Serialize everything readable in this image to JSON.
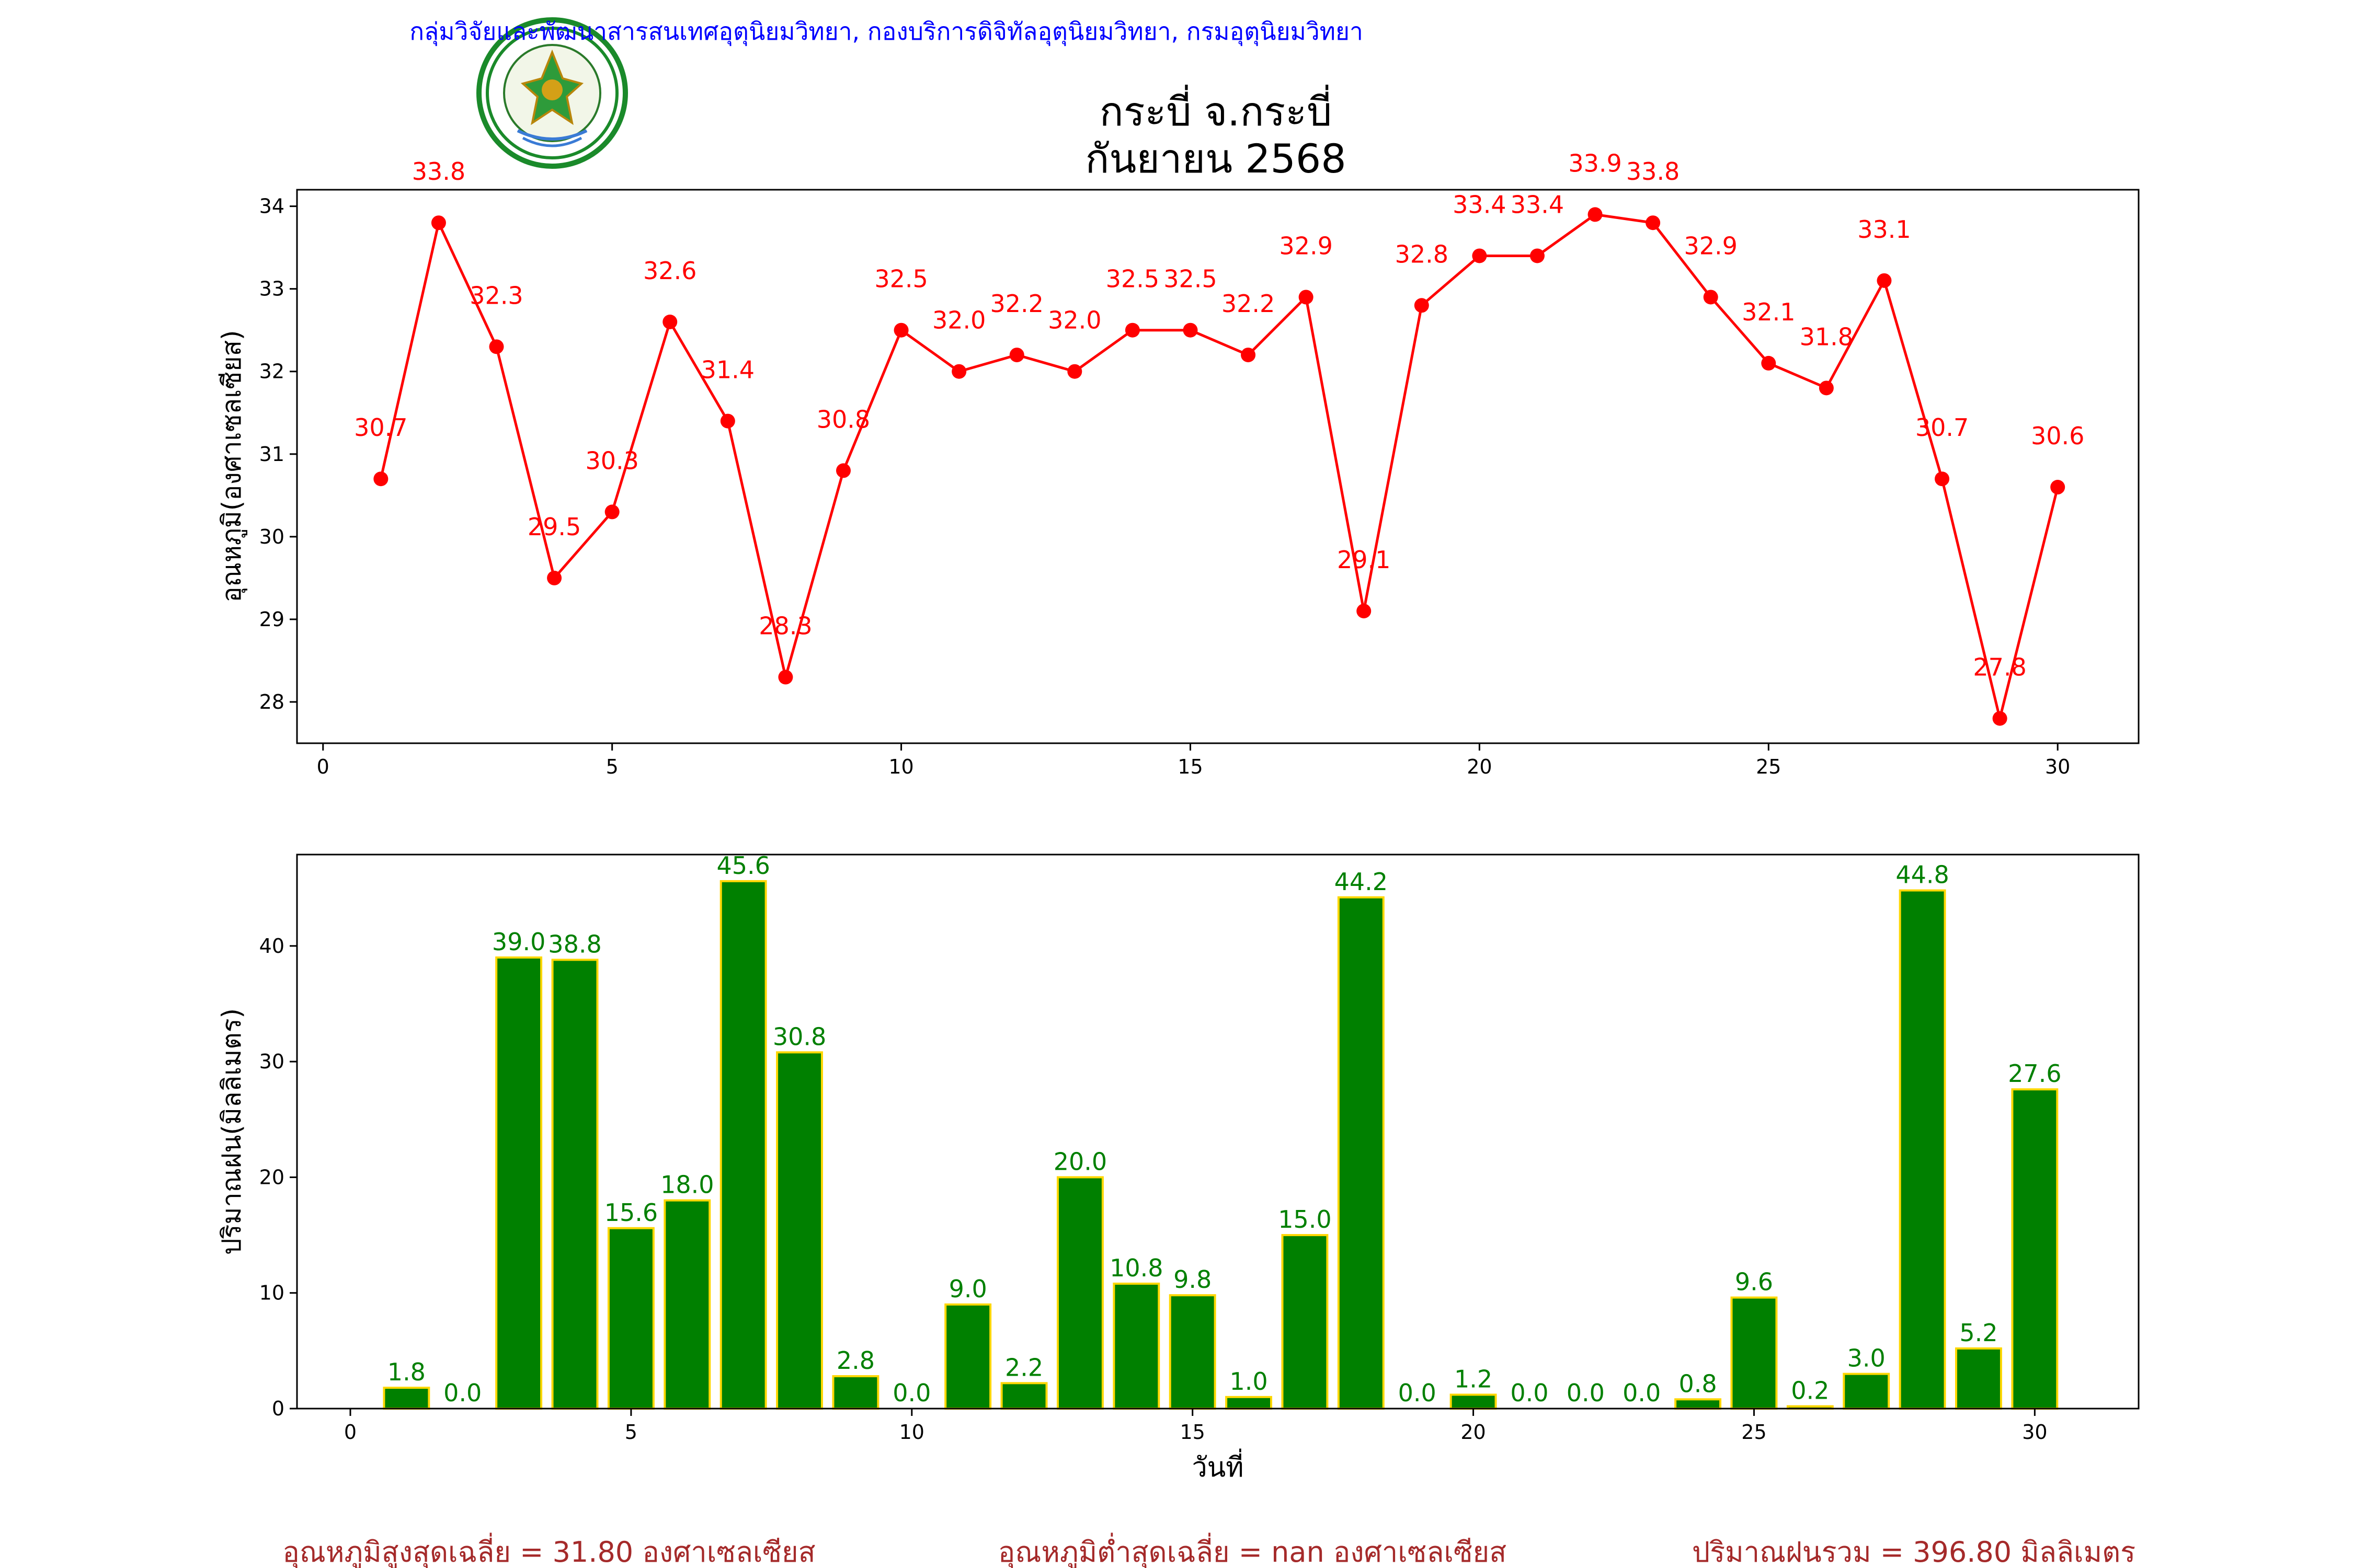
{
  "header": {
    "credit": "กลุ่มวิจัยและพัฒนาสารสนเทศอุตุนิยมวิทยา, กองบริการดิจิทัลอุตุนิยมวิทยา, กรมอุตุนิยมวิทยา",
    "title_line1": "กระบี่ จ.กระบี่",
    "title_line2": "กันยายน 2568",
    "logo_text_top": "กรมอุตุนิยมวิทยา",
    "logo_text_bottom": "METEOROLOGICAL DEPARTMENT"
  },
  "colors": {
    "temp_line": "#ff0000",
    "rain_bar": "#008000",
    "rain_bar_edge": "#ffd700",
    "footer": "#a52a2a",
    "credit": "#0000ff"
  },
  "chart_data": [
    {
      "type": "line",
      "ylabel": "อุณหภูมิ(องศาเซลเซียส)",
      "xlabel": "",
      "x": [
        1,
        2,
        3,
        4,
        5,
        6,
        7,
        8,
        9,
        10,
        11,
        12,
        13,
        14,
        15,
        16,
        17,
        18,
        19,
        20,
        21,
        22,
        23,
        24,
        25,
        26,
        27,
        28,
        29,
        30
      ],
      "values": [
        30.7,
        33.8,
        32.3,
        29.5,
        30.3,
        32.6,
        31.4,
        28.3,
        30.8,
        32.5,
        32.0,
        32.2,
        32.0,
        32.5,
        32.5,
        32.2,
        32.9,
        29.1,
        32.8,
        33.4,
        33.4,
        33.9,
        33.8,
        32.9,
        32.1,
        31.8,
        33.1,
        30.7,
        27.8,
        30.6
      ],
      "labels": [
        "30.7",
        "33.8",
        "32.3",
        "29.5",
        "30.3",
        "32.6",
        "31.4",
        "28.3",
        "30.8",
        "32.5",
        "32.0",
        "32.2",
        "32.0",
        "32.5",
        "32.5",
        "32.2",
        "32.9",
        "29.1",
        "32.8",
        "33.4",
        "33.4",
        "33.9",
        "33.8",
        "32.9",
        "32.1",
        "31.8",
        "33.1",
        "30.7",
        "27.8",
        "30.6"
      ],
      "xlim": [
        -0.45,
        31.4
      ],
      "ylim": [
        27.5,
        34.2
      ],
      "xticks": [
        0,
        5,
        10,
        15,
        20,
        25,
        30
      ],
      "yticks": [
        28,
        29,
        30,
        31,
        32,
        33,
        34
      ],
      "grid": false
    },
    {
      "type": "bar",
      "ylabel": "ปริมาณฝน(มิลลิเมตร)",
      "xlabel": "วันที่",
      "x": [
        1,
        2,
        3,
        4,
        5,
        6,
        7,
        8,
        9,
        10,
        11,
        12,
        13,
        14,
        15,
        16,
        17,
        18,
        19,
        20,
        21,
        22,
        23,
        24,
        25,
        26,
        27,
        28,
        29,
        30
      ],
      "values": [
        1.8,
        0.0,
        39.0,
        38.8,
        15.6,
        18.0,
        45.6,
        30.8,
        2.8,
        0.0,
        9.0,
        2.2,
        20.0,
        10.8,
        9.8,
        1.0,
        15.0,
        44.2,
        0.0,
        1.2,
        0.0,
        0.0,
        0.0,
        0.8,
        9.6,
        0.2,
        3.0,
        44.8,
        5.2,
        27.6
      ],
      "labels": [
        "1.8",
        "0.0",
        "39.0",
        "38.8",
        "15.6",
        "18.0",
        "45.6",
        "30.8",
        "2.8",
        "0.0",
        "9.0",
        "2.2",
        "20.0",
        "10.8",
        "9.8",
        "1.0",
        "15.0",
        "44.2",
        "0.0",
        "1.2",
        "0.0",
        "0.0",
        "0.0",
        "0.8",
        "9.6",
        "0.2",
        "3.0",
        "44.8",
        "5.2",
        "27.6"
      ],
      "xlim": [
        -0.95,
        31.85
      ],
      "ylim": [
        0,
        47.9
      ],
      "xticks": [
        0,
        5,
        10,
        15,
        20,
        25,
        30
      ],
      "yticks": [
        0,
        10,
        20,
        30,
        40
      ],
      "grid": false
    }
  ],
  "footer": {
    "avg_max": "อุณหภูมิสูงสุดเฉลี่ย = 31.80 องศาเซลเซียส",
    "avg_min": "อุณหภูมิต่ำสุดเฉลี่ย = nan องศาเซลเซียส",
    "total_rain": "ปริมาณฝนรวม = 396.80 มิลลิเมตร"
  }
}
